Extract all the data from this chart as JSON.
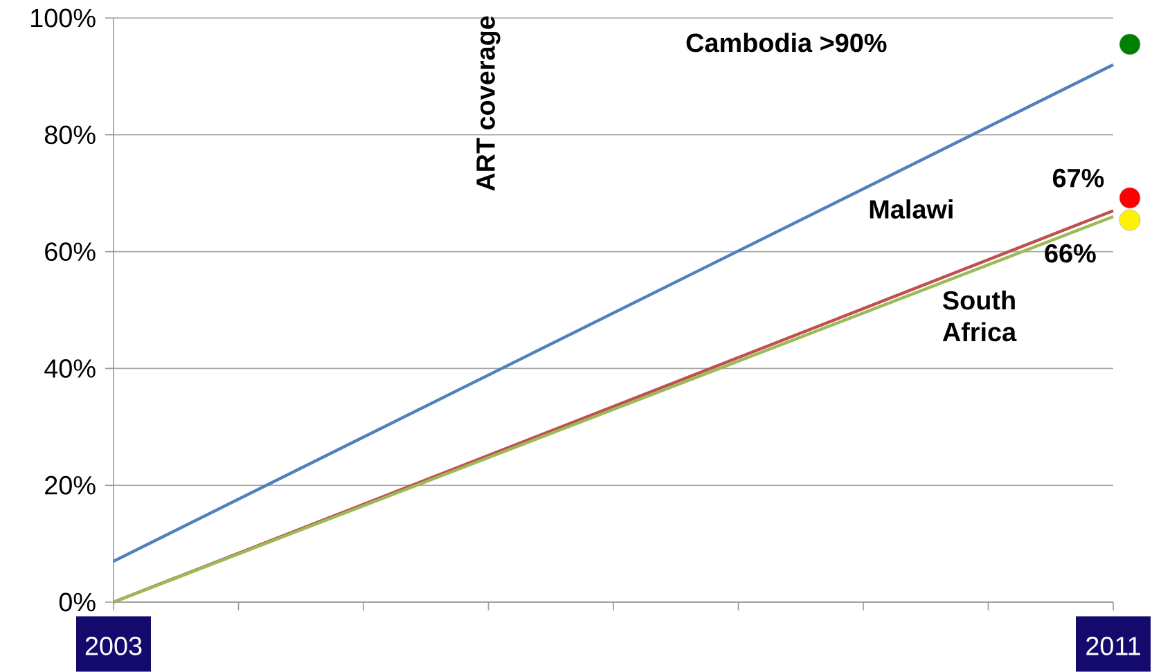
{
  "chart_data": {
    "type": "line",
    "ylabel": "ART coverage",
    "x": [
      2003,
      2011
    ],
    "series": [
      {
        "color": "#4f81bd",
        "values": [
          7,
          92
        ]
      },
      {
        "color": "#c0504d",
        "values": [
          0,
          67
        ]
      },
      {
        "color": "#9bbb59",
        "values": [
          0,
          66
        ]
      }
    ],
    "xlim": [
      2003,
      2011
    ],
    "xticks": [
      {
        "value": 2003,
        "label": "2003"
      },
      {
        "value": 2004,
        "label": null
      },
      {
        "value": 2005,
        "label": null
      },
      {
        "value": 2006,
        "label": null
      },
      {
        "value": 2007,
        "label": null
      },
      {
        "value": 2008,
        "label": null
      },
      {
        "value": 2009,
        "label": null
      },
      {
        "value": 2010,
        "label": null
      },
      {
        "value": 2011,
        "label": "2011"
      }
    ],
    "ylim": [
      0,
      100
    ],
    "yticks": [
      {
        "value": 0,
        "label": "0%"
      },
      {
        "value": 20,
        "label": "20%"
      },
      {
        "value": 40,
        "label": "40%"
      },
      {
        "value": 60,
        "label": "60%"
      },
      {
        "value": 80,
        "label": "80%"
      },
      {
        "value": 100,
        "label": "100%"
      }
    ],
    "annotations": [
      "Cambodia >90%",
      "Malawi",
      "67%",
      "66%",
      "South Africa"
    ],
    "grid": "y",
    "marker": "none",
    "line_style": "solid"
  }
}
